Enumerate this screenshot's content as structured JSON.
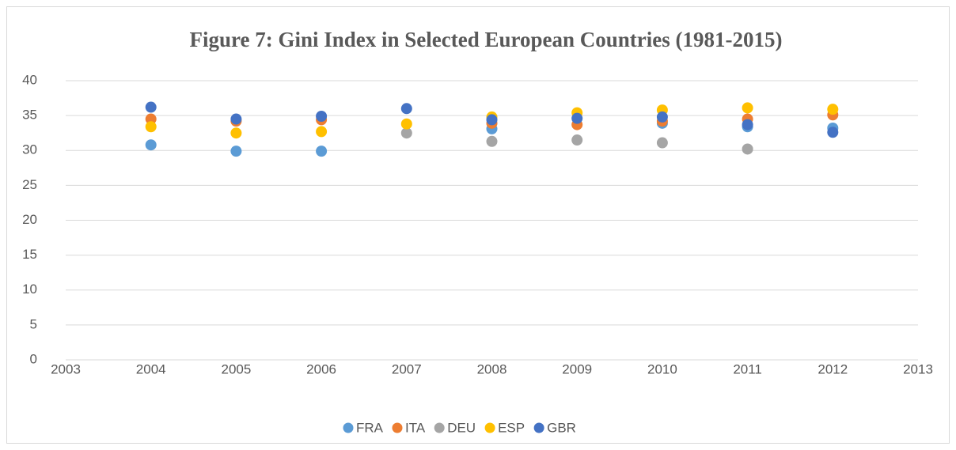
{
  "chart_data": {
    "type": "scatter",
    "title": "Figure 7: Gini Index in Selected European Countries (1981-2015)",
    "x": [
      2004,
      2005,
      2006,
      2007,
      2008,
      2009,
      2010,
      2011,
      2012
    ],
    "series": [
      {
        "name": "FRA",
        "color": "#5b9bd5",
        "values": [
          30.8,
          29.9,
          29.9,
          null,
          33.1,
          null,
          33.9,
          33.4,
          33.2
        ]
      },
      {
        "name": "ITA",
        "color": "#ed7d31",
        "values": [
          34.5,
          34.2,
          34.4,
          null,
          33.9,
          33.7,
          34.2,
          34.5,
          35.1
        ]
      },
      {
        "name": "DEU",
        "color": "#a5a5a5",
        "values": [
          null,
          null,
          null,
          32.5,
          31.3,
          31.5,
          31.1,
          30.2,
          null
        ]
      },
      {
        "name": "ESP",
        "color": "#ffc000",
        "values": [
          33.4,
          32.5,
          32.7,
          33.8,
          34.8,
          35.4,
          35.8,
          36.1,
          35.9
        ]
      },
      {
        "name": "GBR",
        "color": "#4472c4",
        "values": [
          36.2,
          34.5,
          34.9,
          36.0,
          34.4,
          34.6,
          34.8,
          33.7,
          32.6
        ]
      }
    ],
    "xlim": [
      2003,
      2013
    ],
    "xticks": [
      2003,
      2004,
      2005,
      2006,
      2007,
      2008,
      2009,
      2010,
      2011,
      2012,
      2013
    ],
    "ylim": [
      0,
      40
    ],
    "yticks": [
      0,
      5,
      10,
      15,
      20,
      25,
      30,
      35,
      40
    ],
    "grid": true
  }
}
